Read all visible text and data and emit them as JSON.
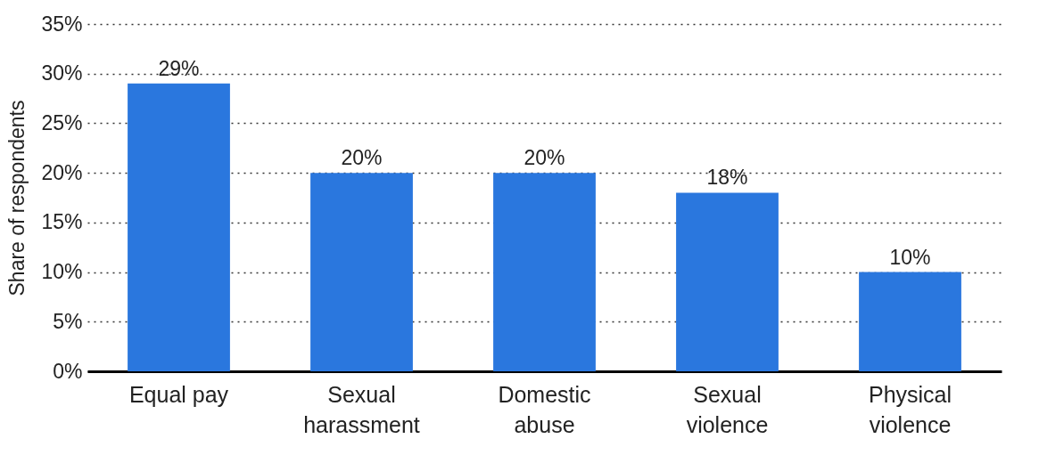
{
  "chart_data": {
    "type": "bar",
    "ylabel": "Share of respondents",
    "categories": [
      "Equal pay",
      "Sexual harassment",
      "Domestic abuse",
      "Sexual violence",
      "Physical violence"
    ],
    "values": [
      29,
      20,
      20,
      18,
      10
    ],
    "value_labels": [
      "29%",
      "20%",
      "20%",
      "18%",
      "10%"
    ],
    "color": "#2a77de",
    "ylim": [
      0,
      35
    ],
    "yticks": [
      {
        "value": 0,
        "label": "0%"
      },
      {
        "value": 5,
        "label": "5%"
      },
      {
        "value": 10,
        "label": "10%"
      },
      {
        "value": 15,
        "label": "15%"
      },
      {
        "value": 20,
        "label": "20%"
      },
      {
        "value": 25,
        "label": "25%"
      },
      {
        "value": 30,
        "label": "30%"
      },
      {
        "value": 35,
        "label": "35%"
      }
    ],
    "grid": "y"
  }
}
